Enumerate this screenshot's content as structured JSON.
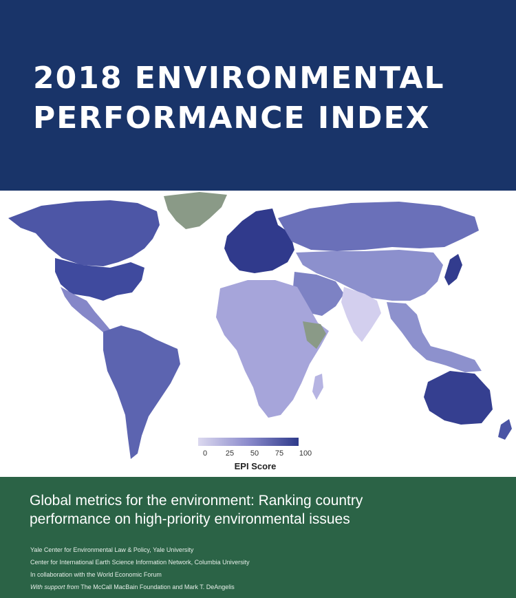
{
  "header": {
    "title_line1": "2018 ENVIRONMENTAL",
    "title_line2": "PERFORMANCE INDEX"
  },
  "map": {
    "colors": {
      "no_data": "#8a9a87",
      "scale_low": "#dcd9ef",
      "scale_mid": "#8b8bcc",
      "scale_high": "#2e3a8a"
    },
    "legend": {
      "ticks": [
        "0",
        "25",
        "50",
        "75",
        "100"
      ],
      "label": "EPI Score"
    }
  },
  "footer": {
    "subtitle_line1": "Global metrics for the environment: Ranking country",
    "subtitle_line2": "performance on high-priority environmental issues",
    "credits": [
      "Yale Center for Environmental Law & Policy, Yale University",
      "Center for International Earth Science Information Network, Columbia University",
      "In collaboration with the World Economic Forum"
    ],
    "support_prefix": "With support from",
    "support_text": "The McCall MacBain Foundation and Mark T. DeAngelis"
  }
}
